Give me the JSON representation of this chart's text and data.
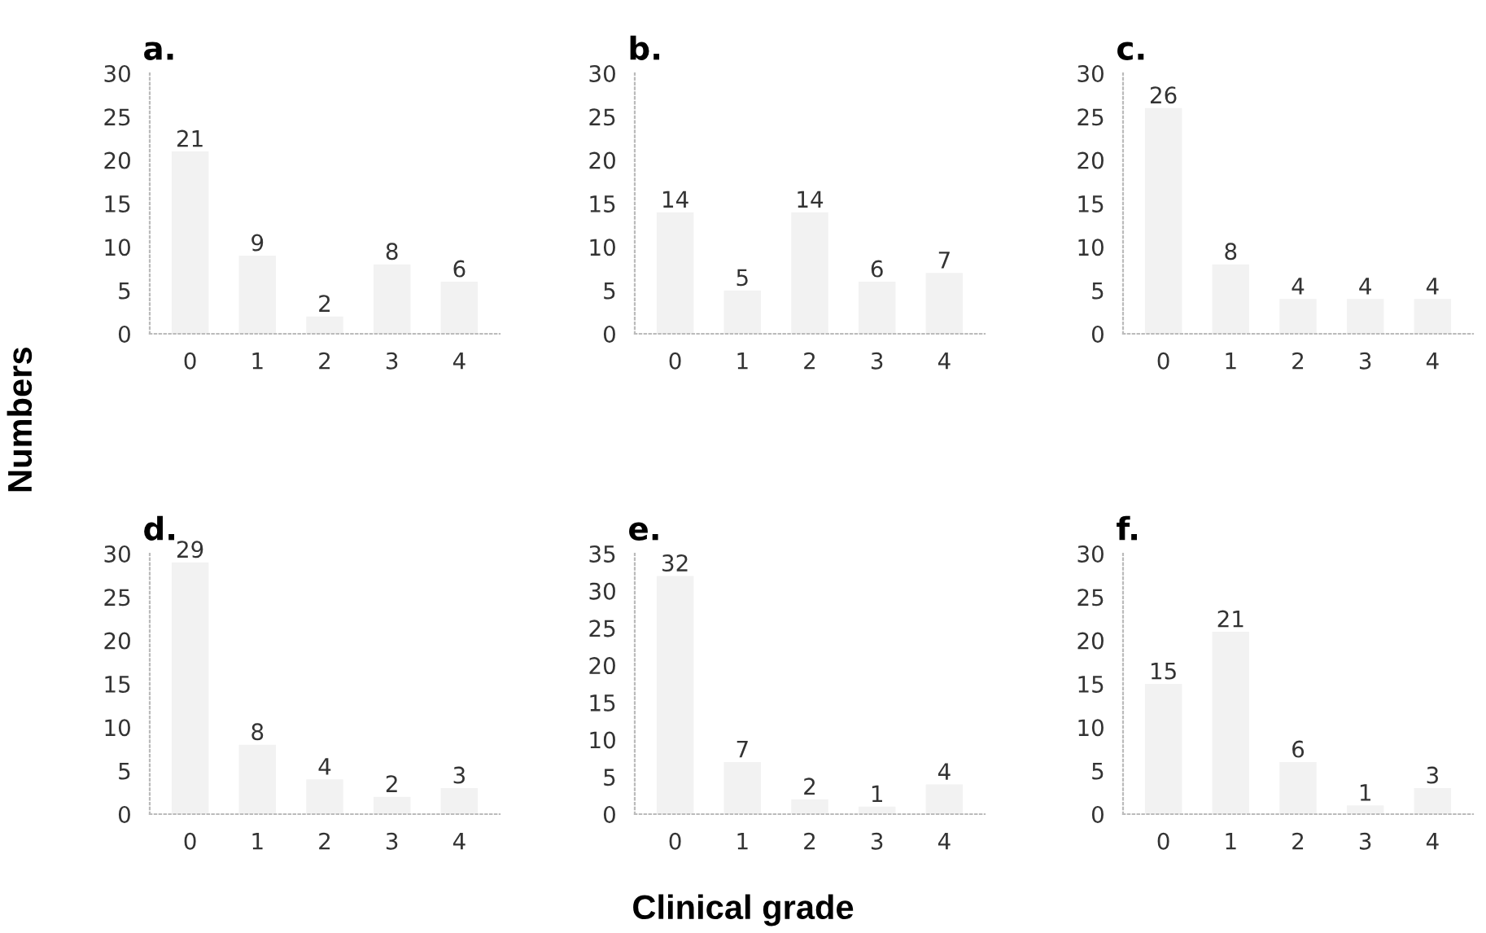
{
  "chart_data": [
    {
      "type": "bar",
      "title": "a.",
      "ylabel": "Numbers",
      "categories": [
        "0",
        "1",
        "2",
        "3",
        "4"
      ],
      "values": [
        21,
        9,
        2,
        8,
        6
      ],
      "color": "#f2f2f2",
      "ylim": [
        0,
        30
      ],
      "yticks": [
        0,
        5,
        10,
        15,
        20,
        25,
        30
      ],
      "data_labels": true
    },
    {
      "type": "bar",
      "title": "b.",
      "categories": [
        "0",
        "1",
        "2",
        "3",
        "4"
      ],
      "values": [
        14,
        5,
        14,
        6,
        7
      ],
      "color": "#f2f2f2",
      "ylim": [
        0,
        30
      ],
      "yticks": [
        0,
        5,
        10,
        15,
        20,
        25,
        30
      ],
      "data_labels": true
    },
    {
      "type": "bar",
      "title": "c.",
      "categories": [
        "0",
        "1",
        "2",
        "3",
        "4"
      ],
      "values": [
        26,
        8,
        4,
        4,
        4
      ],
      "color": "#f2f2f2",
      "ylim": [
        0,
        30
      ],
      "yticks": [
        0,
        5,
        10,
        15,
        20,
        25,
        30
      ],
      "data_labels": true
    },
    {
      "type": "bar",
      "title": "d.",
      "categories": [
        "0",
        "1",
        "2",
        "3",
        "4"
      ],
      "values": [
        29,
        8,
        4,
        2,
        3
      ],
      "color": "#f2f2f2",
      "ylim": [
        0,
        30
      ],
      "yticks": [
        0,
        5,
        10,
        15,
        20,
        25,
        30
      ],
      "data_labels": true
    },
    {
      "type": "bar",
      "title": "e.",
      "xlabel": "Clinical grade",
      "categories": [
        "0",
        "1",
        "2",
        "3",
        "4"
      ],
      "values": [
        32,
        7,
        2,
        1,
        4
      ],
      "color": "#f2f2f2",
      "ylim": [
        0,
        35
      ],
      "yticks": [
        0,
        5,
        10,
        15,
        20,
        25,
        30,
        35
      ],
      "data_labels": true
    },
    {
      "type": "bar",
      "title": "f.",
      "categories": [
        "0",
        "1",
        "2",
        "3",
        "4"
      ],
      "values": [
        15,
        21,
        6,
        1,
        3
      ],
      "color": "#f2f2f2",
      "ylim": [
        0,
        30
      ],
      "yticks": [
        0,
        5,
        10,
        15,
        20,
        25,
        30
      ],
      "data_labels": true
    }
  ]
}
